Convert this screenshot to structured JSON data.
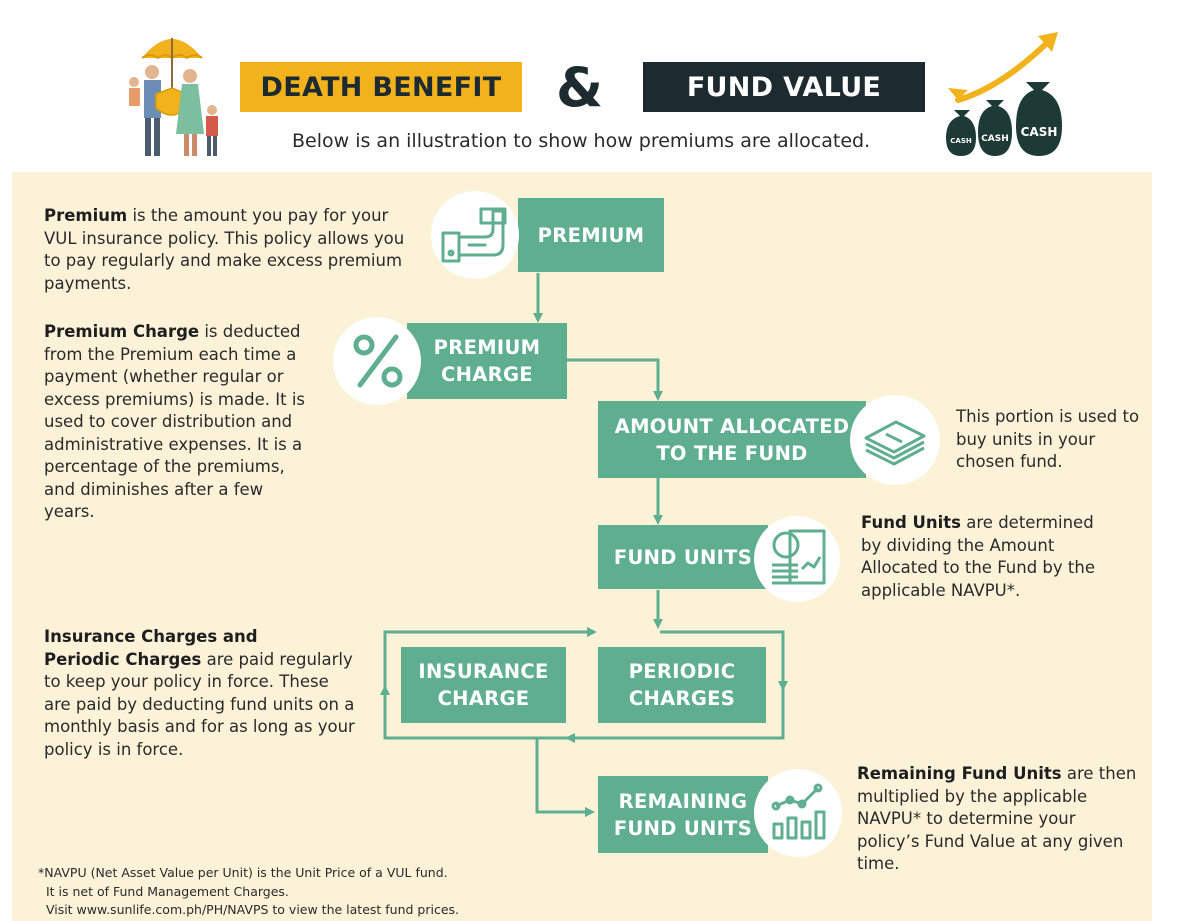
{
  "header": {
    "death_benefit": "DEATH BENEFIT",
    "ampersand": "&",
    "fund_value": "FUND VALUE",
    "subtitle": "Below is an illustration to show how premiums are allocated.",
    "cash_labels": [
      "CASH",
      "CASH",
      "CASH"
    ]
  },
  "colors": {
    "accent_yellow": "#f2b21b",
    "dark_navy": "#1d2b31",
    "teal": "#5fae90",
    "panel_bg": "#fcf2d8"
  },
  "flow": {
    "premium": "PREMIUM",
    "premium_charge": "PREMIUM\nCHARGE",
    "amount_allocated": "AMOUNT ALLOCATED\nTO THE FUND",
    "fund_units": "FUND UNITS",
    "insurance_charge": "INSURANCE\nCHARGE",
    "periodic_charges": "PERIODIC\nCHARGES",
    "remaining_fund_units": "REMAINING\nFUND UNITS"
  },
  "descriptions": {
    "premium": {
      "bold": "Premium",
      "text": " is the amount you pay for your VUL insurance policy. This policy allows you to pay regularly and make excess premium payments."
    },
    "premium_charge": {
      "bold": "Premium Charge",
      "text": " is deducted from the Premium each time a payment (whether regular or excess premiums) is made. It is used to cover distribution and administrative expenses. It is a percentage of the premiums, and diminishes after a few years."
    },
    "amount_allocated": {
      "text": "This portion is used to buy units in your chosen fund."
    },
    "fund_units": {
      "bold": "Fund Units",
      "text": " are determined by dividing the Amount Allocated to the Fund by the applicable NAVPU*."
    },
    "charges": {
      "bold1": "Insurance Charges and",
      "bold2": "Periodic Charges",
      "text": " are paid regularly to keep your policy in force. These are paid by deducting fund units on a monthly basis and for as long as your policy is in force."
    },
    "remaining": {
      "bold": "Remaining Fund Units",
      "text": " are then multiplied by the applicable NAVPU* to determine your policy’s Fund Value at any given time."
    }
  },
  "footnote": [
    "*NAVPU (Net Asset Value per Unit) is the Unit Price of a VUL fund.",
    "  It is net of Fund Management Charges.",
    "  Visit www.sunlife.com.ph/PH/NAVPS to view the latest fund prices."
  ],
  "icons": {
    "family": "family-umbrella-icon",
    "cash_bags": "cash-bags-growth-icon",
    "premium": "hand-money-icon",
    "premium_charge": "percent-icon",
    "amount_allocated": "money-stack-icon",
    "fund_units": "coins-document-icon",
    "remaining": "growth-chart-icon"
  }
}
